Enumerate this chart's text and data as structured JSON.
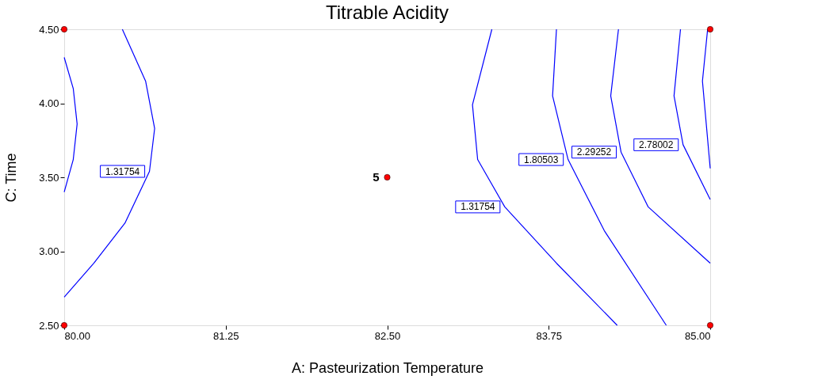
{
  "chart_data": {
    "type": "line",
    "title": "Titrable Acidity",
    "xlabel": "A: Pasteurization Temperature",
    "ylabel": "C: Time",
    "xlim": [
      80,
      85
    ],
    "ylim": [
      2.5,
      4.5
    ],
    "xticks": [
      {
        "value": 80,
        "label": "80.00"
      },
      {
        "value": 81.25,
        "label": "81.25"
      },
      {
        "value": 82.5,
        "label": "82.50"
      },
      {
        "value": 83.75,
        "label": "83.75"
      },
      {
        "value": 85,
        "label": "85.00"
      }
    ],
    "yticks": [
      {
        "value": 2.5,
        "label": "2.50"
      },
      {
        "value": 3,
        "label": "3.00"
      },
      {
        "value": 3.5,
        "label": "3.50"
      },
      {
        "value": 4,
        "label": "4.00"
      },
      {
        "value": 4.5,
        "label": "4.50"
      }
    ],
    "grid": false,
    "marker": "none",
    "line_style": "solid",
    "series": [
      {
        "color": "#0000ff",
        "x": [
          80,
          80.07,
          80.1,
          80.07,
          80
        ],
        "values": [
          4.31,
          4.1,
          3.86,
          3.62,
          3.4
        ]
      },
      {
        "name": "1.31754",
        "color": "#0000ff",
        "x": [
          80.45,
          80.63,
          80.7,
          80.66,
          80.47,
          80.23,
          80
        ],
        "values": [
          4.5,
          4.15,
          3.83,
          3.54,
          3.19,
          2.92,
          2.69
        ]
      },
      {
        "name": "1.31754",
        "color": "#0000ff",
        "x": [
          83.31,
          83.16,
          83.2,
          83.41,
          83.81,
          84.28
        ],
        "values": [
          4.5,
          3.99,
          3.62,
          3.3,
          2.92,
          2.5
        ]
      },
      {
        "name": "1.80503",
        "color": "#0000ff",
        "x": [
          83.81,
          83.78,
          83.9,
          84.18,
          84.66
        ],
        "values": [
          4.5,
          4.05,
          3.62,
          3.14,
          2.5
        ]
      },
      {
        "name": "2.29252",
        "color": "#0000ff",
        "x": [
          84.29,
          84.23,
          84.31,
          84.52,
          85
        ],
        "values": [
          4.5,
          4.05,
          3.67,
          3.3,
          2.92
        ]
      },
      {
        "name": "2.78002",
        "color": "#0000ff",
        "x": [
          84.77,
          84.72,
          84.79,
          85
        ],
        "values": [
          4.5,
          4.05,
          3.72,
          3.35
        ]
      },
      {
        "color": "#0000ff",
        "x": [
          84.98,
          84.94,
          85
        ],
        "values": [
          4.5,
          4.15,
          3.56
        ]
      },
      {
        "type": "scatter",
        "color": "#ff0000",
        "marker": "circle",
        "x": [
          80,
          80,
          85,
          85,
          82.5
        ],
        "values": [
          2.5,
          4.5,
          2.5,
          4.5,
          3.5
        ]
      }
    ],
    "annotations": [
      {
        "text": "5",
        "x": 82.5,
        "y": 3.5
      }
    ]
  }
}
